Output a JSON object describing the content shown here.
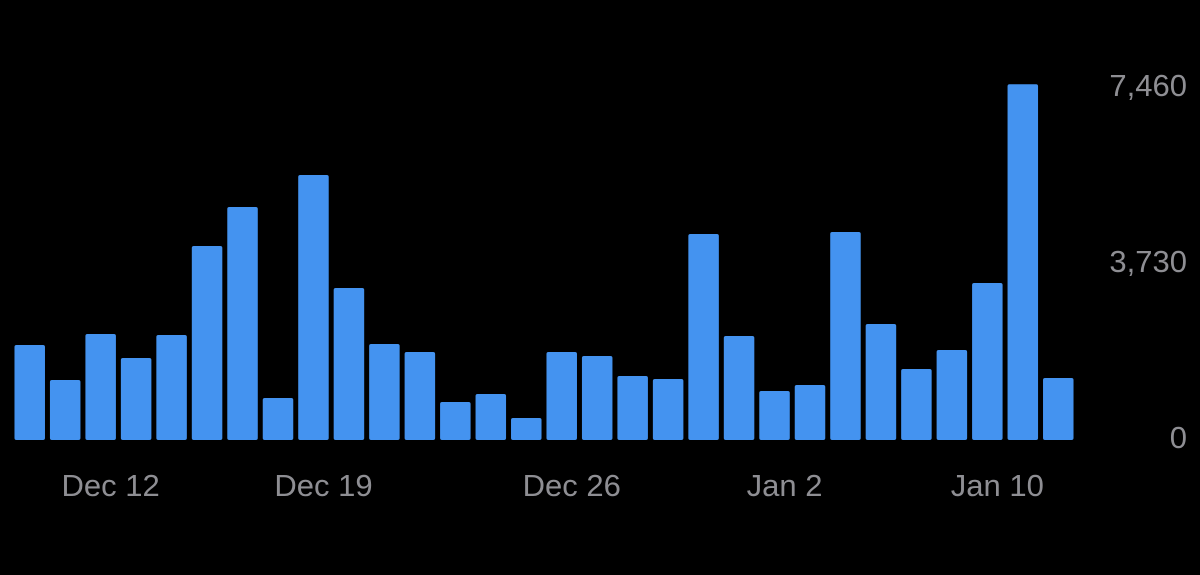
{
  "chart_data": {
    "type": "bar",
    "categories": [
      null,
      null,
      "Dec 12",
      null,
      null,
      null,
      null,
      null,
      "Dec 19",
      null,
      null,
      null,
      null,
      null,
      null,
      "Dec 26",
      null,
      null,
      null,
      null,
      null,
      "Jan 2",
      null,
      null,
      null,
      null,
      null,
      "Jan 10",
      null,
      null
    ],
    "values": [
      2014,
      1272,
      2247,
      1738,
      2225,
      4111,
      4938,
      890,
      5616,
      3221,
      2034,
      1865,
      805,
      975,
      466,
      1865,
      1780,
      1356,
      1293,
      4366,
      2204,
      1038,
      1166,
      4408,
      2458,
      1505,
      1907,
      3327,
      7540,
      1314
    ],
    "color": "#4493f0",
    "ylim": [
      0,
      7460
    ],
    "yticks": [
      0,
      {
        "value": 3730,
        "label": "3,730"
      },
      {
        "value": 7460,
        "label": "7,460"
      }
    ]
  }
}
